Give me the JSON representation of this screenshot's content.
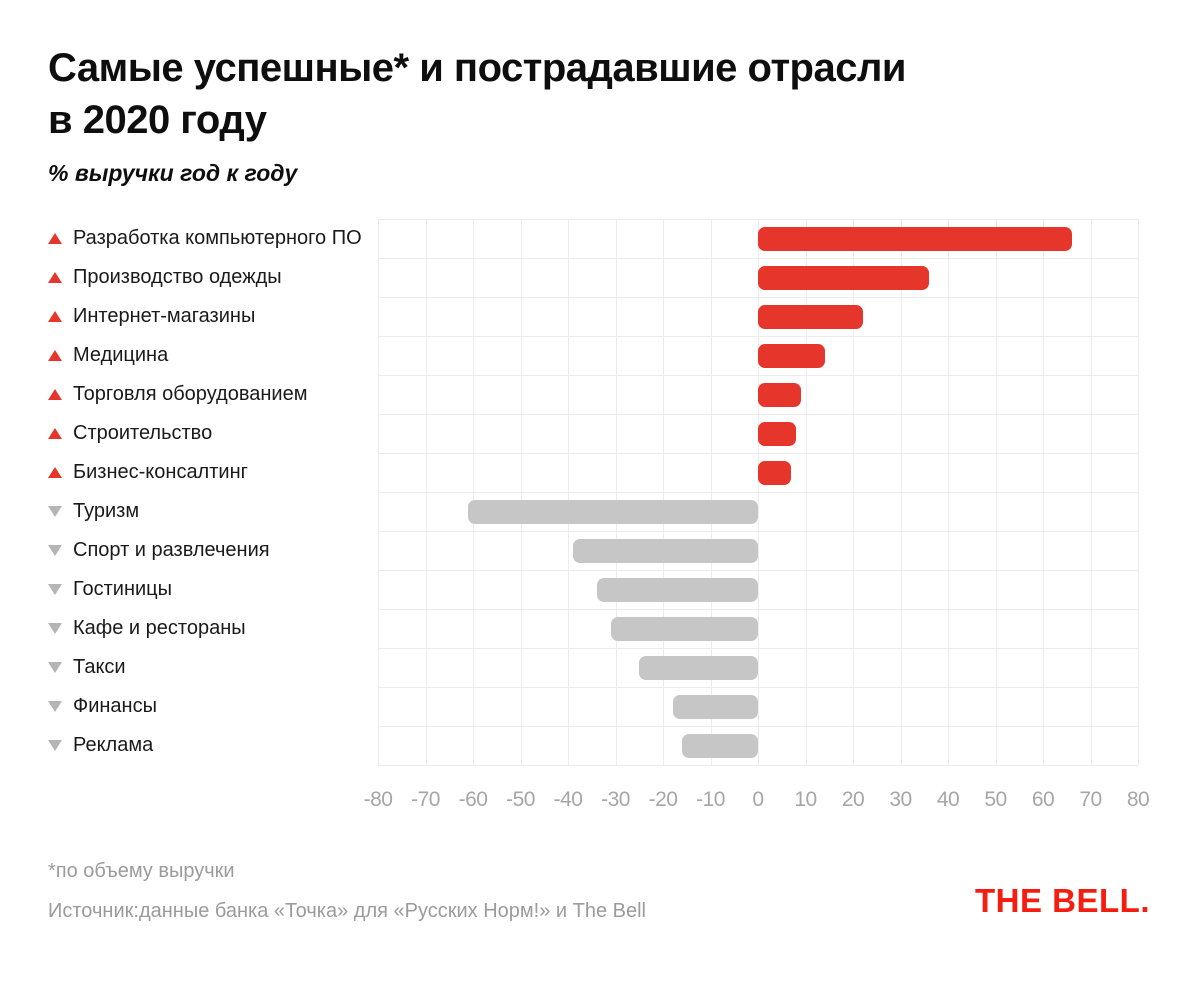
{
  "title": {
    "line1": "Самые успешные* и пострадавшие отрасли",
    "line2": "в 2020 году"
  },
  "subtitle": "% выручки год к году",
  "chart_data": {
    "type": "bar",
    "orientation": "horizontal",
    "title": "Самые успешные* и пострадавшие отрасли в 2020 году",
    "subtitle": "% выручки год к году",
    "categories": [
      "Разработка компьютерного ПО",
      "Производство одежды",
      "Интернет-магазины",
      "Медицина",
      "Торговля оборудованием",
      "Строительство",
      "Бизнес-консалтинг",
      "Туризм",
      "Спорт и развлечения",
      "Гостиницы",
      "Кафе и рестораны",
      "Такси",
      "Финансы",
      "Реклама"
    ],
    "values": [
      66,
      36,
      22,
      14,
      9,
      8,
      7,
      -61,
      -39,
      -34,
      -31,
      -25,
      -18,
      -16
    ],
    "xlim": [
      -80,
      80
    ],
    "x_ticks": [
      -80,
      -70,
      -60,
      -50,
      -40,
      -30,
      -20,
      -10,
      0,
      10,
      20,
      30,
      40,
      50,
      60,
      70,
      80
    ],
    "grid": true,
    "legend": "none",
    "positive_color": "#e6352a",
    "negative_color": "#c6c6c6",
    "positive_marker": "up-triangle",
    "negative_marker": "down-triangle"
  },
  "footer": {
    "footnote": "*по объему выручки",
    "source": "Источник:данные банка «Точка» для «Русских Норм!» и The Bell"
  },
  "logo": "THE BELL.",
  "colors": {
    "bar_positive": "#e6352a",
    "bar_negative": "#c6c6c6",
    "triangle_up": "#e6352a",
    "triangle_down": "#b5b5b5",
    "gridline": "#ececec",
    "axis_text": "#a6a6a6",
    "footer_text": "#9b9b9b",
    "logo_red": "#f51d10",
    "background": "#ffffff"
  }
}
